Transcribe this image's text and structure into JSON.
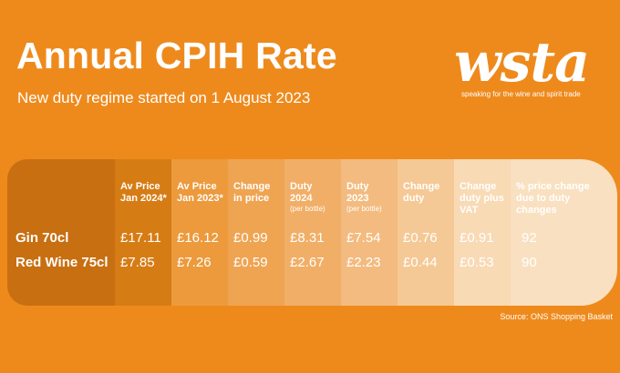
{
  "header": {
    "title": "Annual CPIH Rate",
    "subtitle": "New duty regime started on 1 August 2023"
  },
  "logo": {
    "text": "wsta",
    "tagline": "speaking for the wine and spirit trade"
  },
  "table": {
    "columns": [
      {
        "line1": "Av Price",
        "line2": "Jan 2024*",
        "line3": "",
        "note": ""
      },
      {
        "line1": "Av Price",
        "line2": "Jan 2023*",
        "line3": "",
        "note": ""
      },
      {
        "line1": "Change",
        "line2": "in price",
        "line3": "",
        "note": ""
      },
      {
        "line1": "Duty",
        "line2": "2024",
        "line3": "",
        "note": "(per bottle)"
      },
      {
        "line1": "Duty",
        "line2": "2023",
        "line3": "",
        "note": "(per bottle)"
      },
      {
        "line1": "Change",
        "line2": "duty",
        "line3": "",
        "note": ""
      },
      {
        "line1": "Change",
        "line2": "duty plus",
        "line3": "VAT",
        "note": ""
      },
      {
        "line1": "% price change",
        "line2": "due to duty",
        "line3": "changes",
        "note": ""
      }
    ],
    "rows": [
      {
        "label": "Gin 70cl",
        "values": [
          "£17.11",
          "£16.12",
          "£0.99",
          "£8.31",
          "£7.54",
          "£0.76",
          "£0.91",
          "92"
        ]
      },
      {
        "label": "Red Wine 75cl",
        "values": [
          "£7.85",
          "£7.26",
          "£0.59",
          "£2.67",
          "£2.23",
          "£0.44",
          "£0.53",
          "90"
        ]
      }
    ],
    "colors": [
      "#C86F12",
      "#D67C15",
      "#EC9A3C",
      "#EFA452",
      "#F1AE66",
      "#F3BB7F",
      "#F5C995",
      "#F8DAB5",
      "#F9E0C0"
    ]
  },
  "footer": {
    "source": "Source: ONS Shopping Basket"
  }
}
